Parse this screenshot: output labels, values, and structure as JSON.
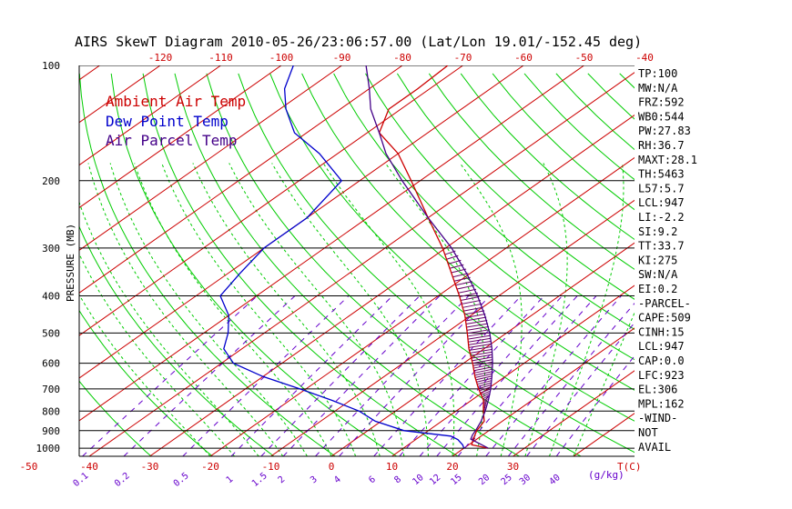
{
  "chart_data": {
    "type": "line",
    "title": "AIRS SkewT Diagram 2010-05-26/23:06:57.00 (Lat/Lon 19.01/-152.45 deg)",
    "ylabel": "PRESSURE (MB)",
    "y_scale": "log",
    "ylim": [
      1050,
      100
    ],
    "y_ticks": [
      100,
      200,
      300,
      400,
      500,
      600,
      700,
      800,
      900,
      1000
    ],
    "top_ticks": [
      -120,
      -110,
      -100,
      -90,
      -80,
      -70,
      -60,
      -50,
      -40
    ],
    "bottom_ticks": [
      -50,
      -40,
      -30,
      -20,
      -10,
      0,
      10,
      20,
      30
    ],
    "bottom_unit": "T(C)",
    "mixing_ratio_labels": [
      "0.1",
      "0.2",
      "0.5",
      "1",
      "1.5",
      "2",
      "3",
      "4",
      "6",
      "8",
      "10",
      "12",
      "15",
      "20",
      "25",
      "30",
      "40"
    ],
    "mixing_ratio_unit": "(g/kg)",
    "legend": [
      "Ambient Air Temp",
      "Dew Point Temp",
      "Air Parcel Temp"
    ],
    "legend_colors": [
      "#cc0000",
      "#0000cc",
      "#440088"
    ],
    "series": [
      {
        "name": "Ambient Air Temp",
        "color": "#cc0000",
        "points": [
          [
            1000,
            24
          ],
          [
            980,
            20.5
          ],
          [
            950,
            19.5
          ],
          [
            900,
            18
          ],
          [
            850,
            17
          ],
          [
            800,
            14.5
          ],
          [
            750,
            12
          ],
          [
            700,
            8.5
          ],
          [
            650,
            5
          ],
          [
            600,
            1.5
          ],
          [
            550,
            -2.5
          ],
          [
            500,
            -6.5
          ],
          [
            450,
            -11
          ],
          [
            400,
            -16.5
          ],
          [
            350,
            -23
          ],
          [
            300,
            -30.5
          ],
          [
            250,
            -40
          ],
          [
            200,
            -51.5
          ],
          [
            170,
            -60
          ],
          [
            150,
            -68
          ],
          [
            130,
            -72
          ],
          [
            115,
            -72
          ],
          [
            100,
            -72.5
          ]
        ]
      },
      {
        "name": "Dew Point Temp",
        "color": "#0000cc",
        "points": [
          [
            1000,
            20
          ],
          [
            980,
            19
          ],
          [
            950,
            17
          ],
          [
            930,
            15
          ],
          [
            900,
            6
          ],
          [
            850,
            -1
          ],
          [
            800,
            -6
          ],
          [
            750,
            -13
          ],
          [
            700,
            -21
          ],
          [
            650,
            -30
          ],
          [
            600,
            -38
          ],
          [
            550,
            -43
          ],
          [
            500,
            -46
          ],
          [
            450,
            -50
          ],
          [
            400,
            -56
          ],
          [
            350,
            -58
          ],
          [
            300,
            -60
          ],
          [
            250,
            -60
          ],
          [
            200,
            -63
          ],
          [
            170,
            -73
          ],
          [
            150,
            -82
          ],
          [
            130,
            -89
          ],
          [
            115,
            -94
          ],
          [
            100,
            -98
          ]
        ]
      },
      {
        "name": "Air Parcel Temp",
        "color": "#440088",
        "points": [
          [
            1000,
            24
          ],
          [
            947,
            19
          ],
          [
            923,
            18.3
          ],
          [
            900,
            17.8
          ],
          [
            850,
            16.5
          ],
          [
            800,
            14.8
          ],
          [
            750,
            12.8
          ],
          [
            700,
            10.5
          ],
          [
            650,
            7.8
          ],
          [
            600,
            4.8
          ],
          [
            550,
            1.3
          ],
          [
            500,
            -2.8
          ],
          [
            450,
            -7.7
          ],
          [
            400,
            -13.5
          ],
          [
            350,
            -20.5
          ],
          [
            300,
            -29
          ],
          [
            250,
            -40
          ],
          [
            200,
            -53
          ],
          [
            170,
            -62
          ],
          [
            150,
            -68
          ],
          [
            130,
            -75
          ],
          [
            115,
            -80
          ],
          [
            100,
            -86
          ]
        ]
      }
    ]
  },
  "indices": [
    "TP:100",
    "MW:N/A",
    "FRZ:592",
    "WB0:544",
    "PW:27.83",
    "RH:36.7",
    "MAXT:28.1",
    "TH:5463",
    "L57:5.7",
    "LCL:947",
    "LI:-2.2",
    "SI:9.2",
    "TT:33.7",
    "KI:275",
    "SW:N/A",
    "EI:0.2",
    "-PARCEL-",
    "CAPE:509",
    "CINH:15",
    "LCL:947",
    "CAP:0.0",
    "LFC:923",
    "EL:306",
    "MPL:162",
    "-WIND-",
    "NOT",
    "AVAIL"
  ],
  "colors": {
    "background": "#ffffff",
    "dry_adiabat": "#00cc00",
    "isotherm": "#cc0000",
    "moist_adiabat": "#00cc00",
    "mixing_ratio": "#6600cc",
    "isobar": "#000000",
    "cape_hatch": "#660066"
  }
}
